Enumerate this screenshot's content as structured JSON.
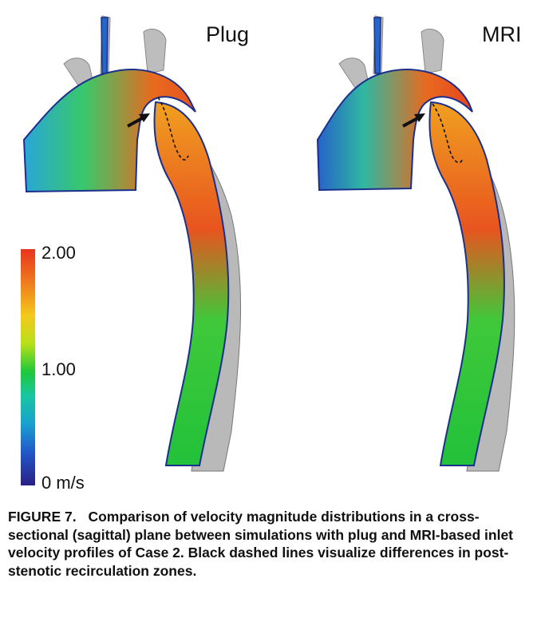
{
  "panels": {
    "left_title": "Plug",
    "right_title": "MRI"
  },
  "colorbar": {
    "max_label": "2.00",
    "mid_label": "1.00",
    "min_label": "0 m/s",
    "colors": [
      "#e8341f",
      "#f5c81c",
      "#1ec83a",
      "#1aa0d0",
      "#2a1f86"
    ]
  },
  "caption": {
    "figure_number": "FIGURE 7.",
    "text": "Comparison of velocity magnitude distributions in a cross-sectional (sagittal) plane between simulations with plug and MRI-based inlet velocity profiles of Case 2. Black dashed lines visualize differences in post-stenotic recirculation zones."
  }
}
